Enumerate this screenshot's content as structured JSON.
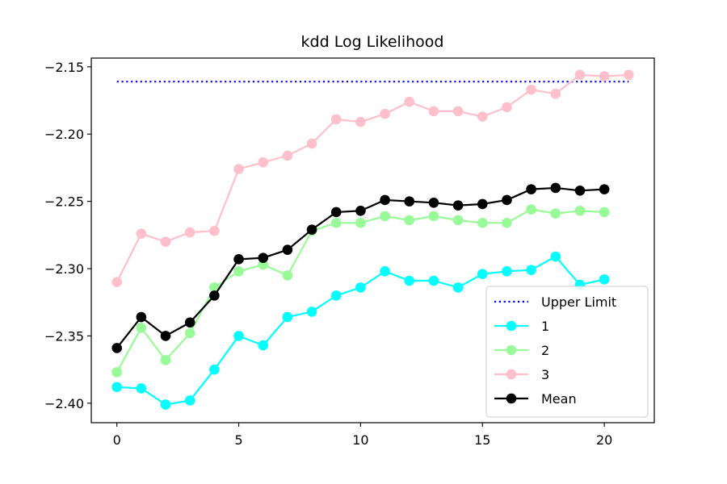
{
  "chart_data": {
    "type": "line",
    "title": "kdd Log Likelihood",
    "xlabel": "",
    "ylabel": "",
    "xlim": [
      -1.05,
      22.05
    ],
    "ylim": [
      -2.4145,
      -2.1435
    ],
    "xticks": [
      0,
      5,
      10,
      15,
      20
    ],
    "xtick_labels": [
      "0",
      "5",
      "10",
      "15",
      "20"
    ],
    "yticks": [
      -2.4,
      -2.35,
      -2.3,
      -2.25,
      -2.2,
      -2.15
    ],
    "ytick_labels": [
      "−2.40",
      "−2.35",
      "−2.30",
      "−2.25",
      "−2.20",
      "−2.15"
    ],
    "grid": false,
    "legend_position": "lower-right",
    "upper_limit": {
      "name": "Upper Limit",
      "x": [
        0,
        21
      ],
      "y": -2.161,
      "color": "#0000ff",
      "style": "dotted"
    },
    "series": [
      {
        "name": "1",
        "color": "#00ffff",
        "x": [
          0,
          1,
          2,
          3,
          4,
          5,
          6,
          7,
          8,
          9,
          10,
          11,
          12,
          13,
          14,
          15,
          16,
          17,
          18,
          19,
          20
        ],
        "values": [
          -2.388,
          -2.389,
          -2.401,
          -2.398,
          -2.375,
          -2.35,
          -2.357,
          -2.336,
          -2.332,
          -2.32,
          -2.314,
          -2.302,
          -2.309,
          -2.309,
          -2.314,
          -2.304,
          -2.302,
          -2.301,
          -2.291,
          -2.312,
          -2.308
        ]
      },
      {
        "name": "2",
        "color": "#98fb98",
        "x": [
          0,
          1,
          2,
          3,
          4,
          5,
          6,
          7,
          8,
          9,
          10,
          11,
          12,
          13,
          14,
          15,
          16,
          17,
          18,
          19,
          20
        ],
        "values": [
          -2.377,
          -2.344,
          -2.368,
          -2.348,
          -2.314,
          -2.302,
          -2.297,
          -2.305,
          -2.272,
          -2.266,
          -2.266,
          -2.261,
          -2.264,
          -2.261,
          -2.264,
          -2.266,
          -2.266,
          -2.256,
          -2.259,
          -2.257,
          -2.258
        ]
      },
      {
        "name": "3",
        "color": "#ffc0cb",
        "x": [
          0,
          1,
          2,
          3,
          4,
          5,
          6,
          7,
          8,
          9,
          10,
          11,
          12,
          13,
          14,
          15,
          16,
          17,
          18,
          19,
          20,
          21
        ],
        "values": [
          -2.31,
          -2.274,
          -2.28,
          -2.273,
          -2.272,
          -2.226,
          -2.221,
          -2.216,
          -2.207,
          -2.189,
          -2.191,
          -2.185,
          -2.176,
          -2.183,
          -2.183,
          -2.187,
          -2.18,
          -2.167,
          -2.17,
          -2.156,
          -2.157,
          -2.156
        ]
      },
      {
        "name": "Mean",
        "color": "#000000",
        "x": [
          0,
          1,
          2,
          3,
          4,
          5,
          6,
          7,
          8,
          9,
          10,
          11,
          12,
          13,
          14,
          15,
          16,
          17,
          18,
          19,
          20
        ],
        "values": [
          -2.359,
          -2.336,
          -2.35,
          -2.34,
          -2.32,
          -2.293,
          -2.292,
          -2.286,
          -2.271,
          -2.258,
          -2.257,
          -2.249,
          -2.25,
          -2.251,
          -2.253,
          -2.252,
          -2.249,
          -2.241,
          -2.24,
          -2.242,
          -2.241
        ]
      }
    ]
  }
}
